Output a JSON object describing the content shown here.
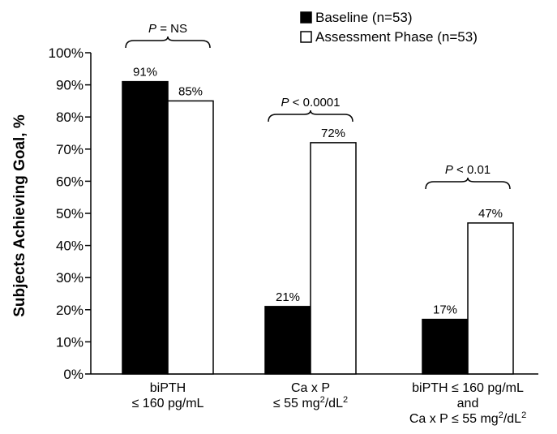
{
  "chart_data": {
    "type": "bar",
    "ylabel": "Subjects Achieving Goal, %",
    "ylim": [
      0,
      100
    ],
    "yticks": [
      "0%",
      "10%",
      "20%",
      "30%",
      "40%",
      "50%",
      "60%",
      "70%",
      "80%",
      "90%",
      "100%"
    ],
    "grid": false,
    "legend_position": "top-right",
    "categories": [
      {
        "lines": [
          {
            "parts": [
              "biPTH"
            ]
          },
          {
            "parts": [
              "≤ 160 pg/mL"
            ]
          }
        ]
      },
      {
        "lines": [
          {
            "parts": [
              "Ca x P"
            ]
          },
          {
            "parts": [
              "≤ 55 mg",
              "2",
              "/dL",
              "2"
            ]
          }
        ]
      },
      {
        "lines": [
          {
            "parts": [
              "biPTH ≤ 160 pg/mL"
            ]
          },
          {
            "parts": [
              "and"
            ]
          },
          {
            "parts": [
              "Ca x P ≤ 55 mg",
              "2",
              "/dL",
              "2"
            ]
          }
        ]
      }
    ],
    "series": [
      {
        "name": "Baseline (n=53)",
        "color": "#000000",
        "values": [
          91,
          21,
          17
        ],
        "labels": [
          "91%",
          "21%",
          "17%"
        ]
      },
      {
        "name": "Assessment Phase (n=53)",
        "color": "#ffffff",
        "values": [
          85,
          72,
          47
        ],
        "labels": [
          "85%",
          "72%",
          "47%"
        ]
      }
    ],
    "annotations": [
      {
        "italic": "P",
        "rest": " = NS"
      },
      {
        "italic": "P",
        "rest": " < 0.0001"
      },
      {
        "italic": "P",
        "rest": " < 0.01"
      }
    ]
  }
}
